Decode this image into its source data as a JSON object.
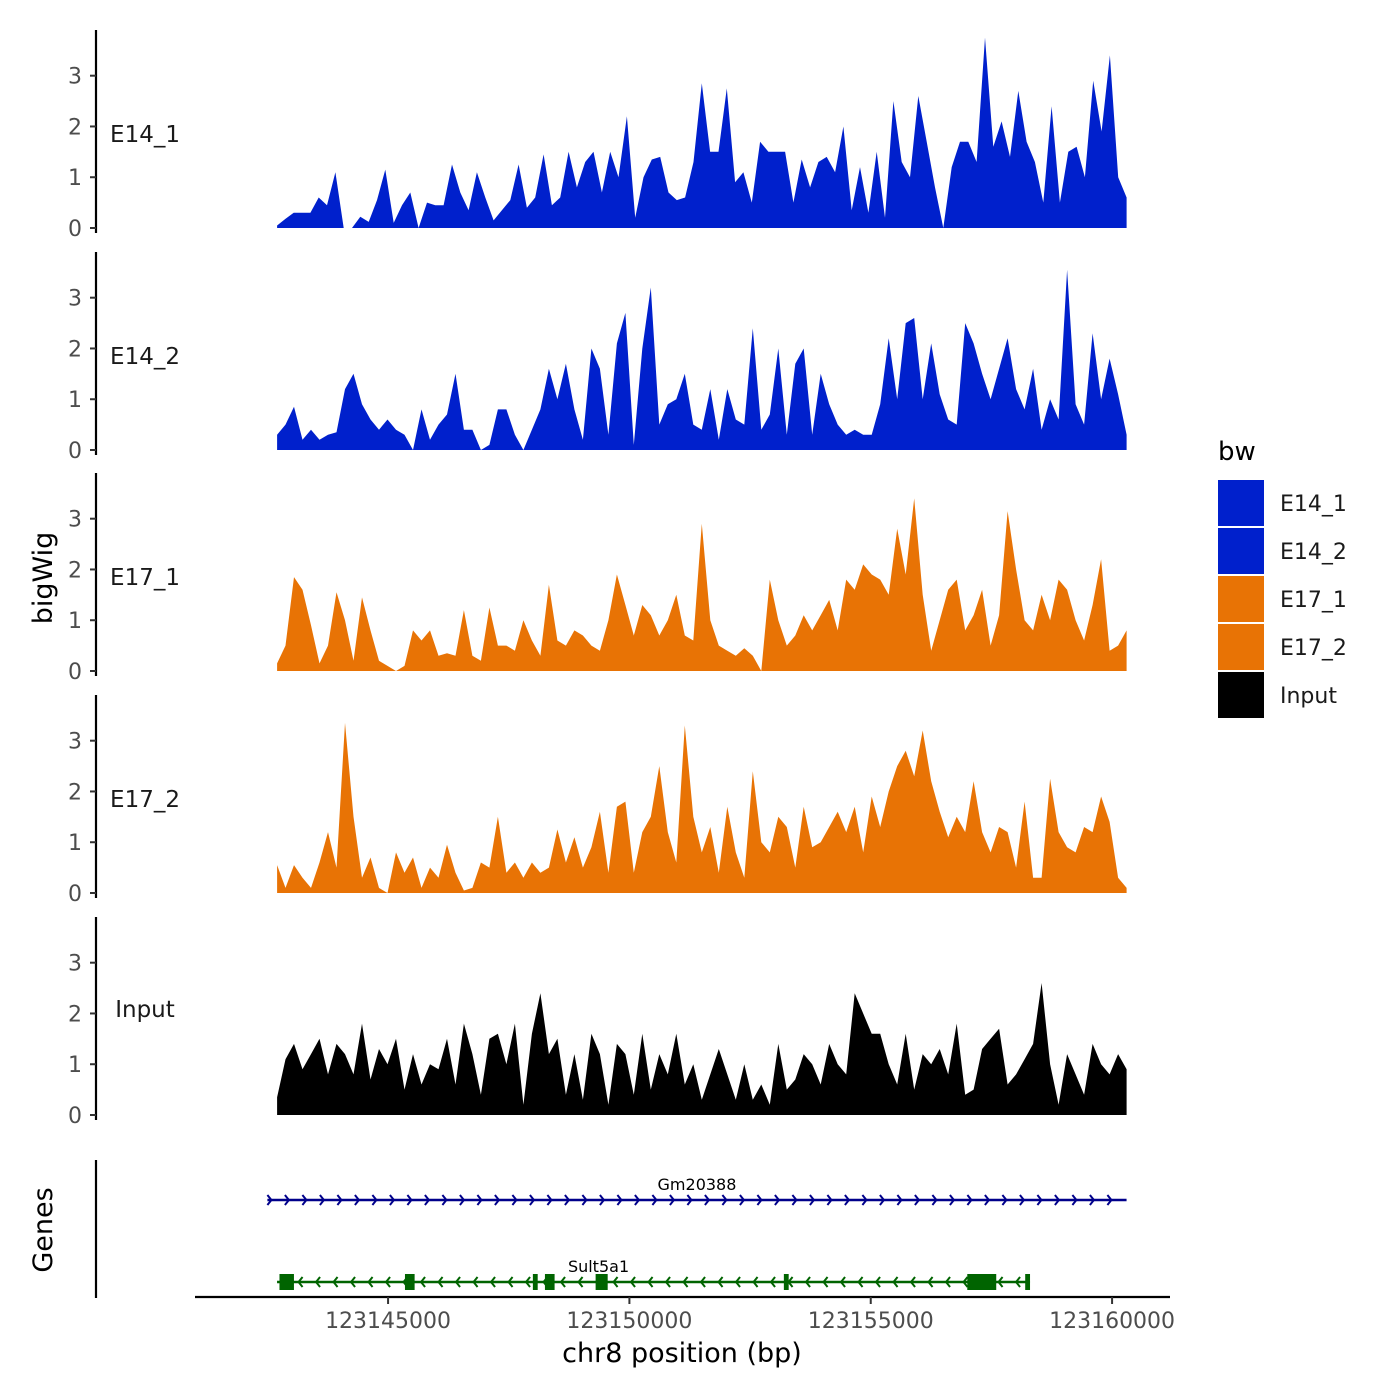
{
  "colors": {
    "E14_1": "#0020cc",
    "E14_2": "#0020cc",
    "E17_1": "#e87305",
    "E17_2": "#e87305",
    "Input": "#000000",
    "gene_Gm20388": "#00008b",
    "gene_Sult5a1": "#006400"
  },
  "chart_data": {
    "type": "area",
    "ylabel": "bigWig",
    "xlabel": "chr8 position (bp)",
    "genes_label": "Genes",
    "xlim": [
      123141000,
      123161200
    ],
    "ylim": [
      0,
      3.9
    ],
    "x_ticks": [
      123145000,
      123150000,
      123155000,
      123160000
    ],
    "x_tick_labels": [
      "123145000",
      "123150000",
      "123155000",
      "123160000"
    ],
    "y_ticks": [
      0,
      1,
      2,
      3
    ],
    "y_tick_labels": [
      "0",
      "1",
      "2",
      "3"
    ],
    "x_range": [
      123142700,
      123160300
    ],
    "legend": {
      "title": "bw",
      "entries": [
        "E14_1",
        "E14_2",
        "E17_1",
        "E17_2",
        "Input"
      ]
    },
    "series": [
      {
        "name": "E14_1",
        "values": [
          0.05,
          0.18,
          0.3,
          0.3,
          0.3,
          0.6,
          0.45,
          1.1,
          0,
          0,
          0.22,
          0.12,
          0.55,
          1.15,
          0.1,
          0.45,
          0.7,
          0,
          0.5,
          0.45,
          0.45,
          1.25,
          0.7,
          0.35,
          1.1,
          0.6,
          0.15,
          0.35,
          0.55,
          1.25,
          0.4,
          0.6,
          1.45,
          0.45,
          0.6,
          1.5,
          0.8,
          1.3,
          1.5,
          0.7,
          1.5,
          1.0,
          2.2,
          0.2,
          1.0,
          1.35,
          1.4,
          0.7,
          0.55,
          0.6,
          1.3,
          2.85,
          1.5,
          1.5,
          2.75,
          0.9,
          1.1,
          0.5,
          1.7,
          1.5,
          1.5,
          1.5,
          0.5,
          1.35,
          0.8,
          1.3,
          1.4,
          1.1,
          2.0,
          0.35,
          1.2,
          0.3,
          1.5,
          0.2,
          2.5,
          1.3,
          1.0,
          2.6,
          1.7,
          0.8,
          0,
          1.2,
          1.7,
          1.7,
          1.3,
          3.75,
          1.6,
          2.1,
          1.4,
          2.7,
          1.7,
          1.3,
          0.5,
          2.4,
          0.5,
          1.5,
          1.6,
          1.0,
          2.9,
          1.9,
          3.4,
          1.0,
          0.6
        ]
      },
      {
        "name": "E14_2",
        "values": [
          0.3,
          0.5,
          0.85,
          0.2,
          0.4,
          0.2,
          0.3,
          0.35,
          1.2,
          1.5,
          0.9,
          0.6,
          0.4,
          0.6,
          0.4,
          0.3,
          0,
          0.8,
          0.2,
          0.5,
          0.7,
          1.5,
          0.4,
          0.4,
          0,
          0.1,
          0.8,
          0.8,
          0.3,
          0,
          0.4,
          0.8,
          1.6,
          1.0,
          1.7,
          0.8,
          0.2,
          2.0,
          1.6,
          0.3,
          2.1,
          2.7,
          0.1,
          2.0,
          3.2,
          0.5,
          0.9,
          1.0,
          1.5,
          0.5,
          0.4,
          1.2,
          0.2,
          1.2,
          0.6,
          0.5,
          2.4,
          0.4,
          0.7,
          2.0,
          0.3,
          1.7,
          2.0,
          0.3,
          1.5,
          0.9,
          0.5,
          0.3,
          0.4,
          0.3,
          0.3,
          0.9,
          2.2,
          1.0,
          2.5,
          2.6,
          1.0,
          2.1,
          1.1,
          0.6,
          0.5,
          2.5,
          2.1,
          1.5,
          1.0,
          1.6,
          2.2,
          1.2,
          0.8,
          1.6,
          0.4,
          1.0,
          0.6,
          3.55,
          0.9,
          0.5,
          2.3,
          1.0,
          1.8,
          1.1,
          0.3
        ]
      },
      {
        "name": "E17_1",
        "values": [
          0.15,
          0.5,
          1.85,
          1.6,
          0.9,
          0.15,
          0.5,
          1.55,
          1.0,
          0.2,
          1.45,
          0.8,
          0.2,
          0.1,
          0,
          0.1,
          0.8,
          0.6,
          0.8,
          0.3,
          0.35,
          0.3,
          1.2,
          0.3,
          0.2,
          1.25,
          0.5,
          0.5,
          0.4,
          1.0,
          0.6,
          0.3,
          1.7,
          0.6,
          0.5,
          0.8,
          0.7,
          0.5,
          0.4,
          1.0,
          1.9,
          1.3,
          0.7,
          1.3,
          1.1,
          0.7,
          1.0,
          1.5,
          0.7,
          0.6,
          2.9,
          1.0,
          0.5,
          0.4,
          0.3,
          0.45,
          0.3,
          0,
          1.8,
          1.0,
          0.5,
          0.7,
          1.1,
          0.8,
          1.1,
          1.4,
          0.8,
          1.8,
          1.6,
          2.1,
          1.9,
          1.8,
          1.5,
          2.8,
          1.9,
          3.4,
          1.5,
          0.4,
          1.0,
          1.6,
          1.8,
          0.8,
          1.1,
          1.6,
          0.5,
          1.1,
          3.15,
          2.0,
          1.0,
          0.8,
          1.5,
          1.0,
          1.8,
          1.6,
          1.0,
          0.6,
          1.3,
          2.2,
          0.4,
          0.5,
          0.8
        ]
      },
      {
        "name": "E17_2",
        "values": [
          0.55,
          0.1,
          0.55,
          0.3,
          0.1,
          0.6,
          1.2,
          0.5,
          3.35,
          1.5,
          0.3,
          0.7,
          0.1,
          0,
          0.8,
          0.4,
          0.7,
          0.1,
          0.5,
          0.3,
          0.95,
          0.4,
          0.05,
          0.1,
          0.6,
          0.5,
          1.5,
          0.4,
          0.6,
          0.3,
          0.6,
          0.4,
          0.5,
          1.25,
          0.6,
          1.1,
          0.5,
          0.9,
          1.6,
          0.4,
          1.7,
          1.8,
          0.4,
          1.2,
          1.5,
          2.5,
          1.2,
          0.6,
          3.3,
          1.5,
          0.8,
          1.3,
          0.4,
          1.7,
          0.8,
          0.3,
          2.4,
          1.0,
          0.8,
          1.5,
          1.3,
          0.5,
          1.7,
          0.9,
          1.0,
          1.3,
          1.6,
          1.2,
          1.7,
          0.8,
          1.9,
          1.3,
          2.0,
          2.5,
          2.8,
          2.3,
          3.2,
          2.2,
          1.6,
          1.1,
          1.5,
          1.2,
          2.2,
          1.2,
          0.8,
          1.3,
          1.2,
          0.5,
          1.8,
          0.3,
          0.3,
          2.25,
          1.2,
          0.9,
          0.8,
          1.3,
          1.2,
          1.9,
          1.4,
          0.3,
          0.1
        ]
      },
      {
        "name": "Input",
        "values": [
          0.35,
          1.1,
          1.4,
          0.9,
          1.2,
          1.5,
          0.8,
          1.4,
          1.2,
          0.8,
          1.8,
          0.7,
          1.3,
          1.0,
          1.5,
          0.5,
          1.2,
          0.6,
          1.0,
          0.9,
          1.5,
          0.6,
          1.8,
          1.2,
          0.4,
          1.5,
          1.6,
          1.0,
          1.8,
          0.2,
          1.6,
          2.4,
          1.2,
          1.5,
          0.4,
          1.2,
          0.3,
          1.6,
          1.2,
          0.2,
          1.4,
          1.2,
          0.4,
          1.6,
          0.5,
          1.2,
          0.8,
          1.6,
          0.6,
          1.0,
          0.3,
          0.8,
          1.3,
          0.8,
          0.3,
          1.0,
          0.3,
          0.6,
          0.2,
          1.4,
          0.5,
          0.7,
          1.2,
          1.0,
          0.6,
          1.4,
          1.0,
          0.8,
          2.4,
          2.0,
          1.6,
          1.6,
          1.0,
          0.6,
          1.6,
          0.5,
          1.2,
          1.0,
          1.3,
          0.8,
          1.8,
          0.4,
          0.5,
          1.3,
          1.5,
          1.7,
          0.6,
          0.8,
          1.1,
          1.4,
          2.6,
          1.0,
          0.2,
          1.2,
          0.8,
          0.4,
          1.4,
          1.0,
          0.8,
          1.2,
          0.9
        ]
      }
    ],
    "genes": [
      {
        "name": "Gm20388",
        "strand": "+",
        "start": 123142500,
        "end": 123160300,
        "exons": []
      },
      {
        "name": "Sult5a1",
        "strand": "-",
        "start": 123142700,
        "end": 123158300,
        "exons": [
          [
            123142750,
            123143050
          ],
          [
            123145350,
            123145550
          ],
          [
            123148000,
            123148100
          ],
          [
            123148250,
            123148450
          ],
          [
            123149300,
            123149550
          ],
          [
            123153200,
            123153300
          ],
          [
            123157000,
            123157600
          ],
          [
            123158200,
            123158300
          ]
        ]
      }
    ]
  }
}
